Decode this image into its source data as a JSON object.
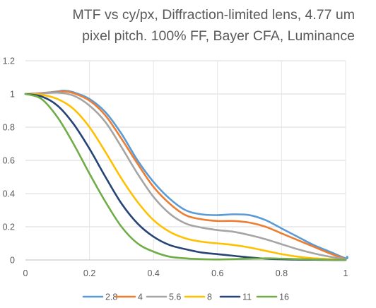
{
  "chart_data": {
    "type": "line",
    "title_line1": "MTF vs cy/px, Diffraction-limited lens, 4.77 um",
    "title_line2": "pixel pitch. 100% FF, Bayer CFA, Luminance",
    "xlabel": "",
    "ylabel": "",
    "xlim": [
      0,
      1
    ],
    "ylim": [
      0,
      1.2
    ],
    "x_ticks": [
      "0",
      "0.2",
      "0.4",
      "0.6",
      "0.8",
      "1"
    ],
    "y_ticks": [
      "0",
      "0.2",
      "0.4",
      "0.6",
      "0.8",
      "1",
      "1.2"
    ],
    "grid": "horizontal",
    "legend_position": "bottom",
    "series": [
      {
        "name": "2.8",
        "color": "#5B9BD5",
        "x": [
          0,
          0.05,
          0.1,
          0.12,
          0.15,
          0.2,
          0.25,
          0.3,
          0.35,
          0.4,
          0.45,
          0.5,
          0.55,
          0.6,
          0.65,
          0.7,
          0.75,
          0.8,
          0.85,
          0.9,
          0.95,
          1.0,
          1.005
        ],
        "y": [
          1.0,
          1.005,
          1.015,
          1.02,
          1.01,
          0.97,
          0.89,
          0.76,
          0.6,
          0.47,
          0.37,
          0.3,
          0.275,
          0.27,
          0.275,
          0.27,
          0.24,
          0.19,
          0.14,
          0.09,
          0.05,
          0.01,
          0.02
        ]
      },
      {
        "name": "4",
        "color": "#ED7D31",
        "x": [
          0,
          0.05,
          0.1,
          0.12,
          0.15,
          0.2,
          0.25,
          0.3,
          0.35,
          0.4,
          0.45,
          0.5,
          0.55,
          0.6,
          0.65,
          0.7,
          0.75,
          0.8,
          0.85,
          0.9,
          0.95,
          1.0
        ],
        "y": [
          1.0,
          1.005,
          1.012,
          1.015,
          1.005,
          0.96,
          0.87,
          0.73,
          0.58,
          0.44,
          0.34,
          0.27,
          0.245,
          0.235,
          0.235,
          0.225,
          0.2,
          0.16,
          0.12,
          0.08,
          0.04,
          0.005
        ]
      },
      {
        "name": "5.6",
        "color": "#A5A5A5",
        "x": [
          0,
          0.05,
          0.1,
          0.15,
          0.2,
          0.25,
          0.3,
          0.35,
          0.4,
          0.45,
          0.5,
          0.55,
          0.6,
          0.65,
          0.7,
          0.75,
          0.8,
          0.85,
          0.9,
          0.95,
          1.0
        ],
        "y": [
          1.0,
          1.003,
          1.008,
          0.99,
          0.93,
          0.83,
          0.68,
          0.52,
          0.38,
          0.28,
          0.22,
          0.195,
          0.18,
          0.17,
          0.15,
          0.125,
          0.095,
          0.065,
          0.04,
          0.02,
          0.005
        ]
      },
      {
        "name": "8",
        "color": "#FFC000",
        "x": [
          0,
          0.05,
          0.1,
          0.15,
          0.2,
          0.25,
          0.3,
          0.35,
          0.4,
          0.45,
          0.5,
          0.55,
          0.6,
          0.65,
          0.7,
          0.75,
          0.8,
          0.85,
          0.9,
          0.95,
          1.0
        ],
        "y": [
          1.0,
          0.995,
          0.97,
          0.91,
          0.8,
          0.65,
          0.49,
          0.35,
          0.24,
          0.17,
          0.13,
          0.11,
          0.1,
          0.09,
          0.075,
          0.055,
          0.035,
          0.02,
          0.01,
          0.005,
          0.0
        ]
      },
      {
        "name": "11",
        "color": "#264478",
        "x": [
          0,
          0.05,
          0.1,
          0.15,
          0.2,
          0.25,
          0.3,
          0.35,
          0.4,
          0.45,
          0.5,
          0.55,
          0.6,
          0.65,
          0.7,
          0.75,
          0.8,
          0.85,
          0.9,
          0.95,
          1.0
        ],
        "y": [
          1.0,
          0.985,
          0.93,
          0.82,
          0.67,
          0.5,
          0.34,
          0.22,
          0.14,
          0.09,
          0.065,
          0.045,
          0.035,
          0.025,
          0.015,
          0.008,
          0.004,
          0.002,
          0.001,
          0.0,
          0.0
        ]
      },
      {
        "name": "16",
        "color": "#70AD47",
        "x": [
          0,
          0.05,
          0.1,
          0.15,
          0.2,
          0.25,
          0.3,
          0.35,
          0.4,
          0.45,
          0.5,
          0.55,
          0.6,
          0.65,
          0.7,
          0.75,
          0.8,
          0.85,
          0.9,
          0.95,
          1.0
        ],
        "y": [
          1.0,
          0.97,
          0.86,
          0.7,
          0.52,
          0.35,
          0.2,
          0.1,
          0.05,
          0.02,
          0.01,
          0.005,
          0.003,
          0.005,
          0.008,
          0.01,
          0.008,
          0.005,
          0.003,
          0.001,
          0.0
        ]
      }
    ]
  }
}
